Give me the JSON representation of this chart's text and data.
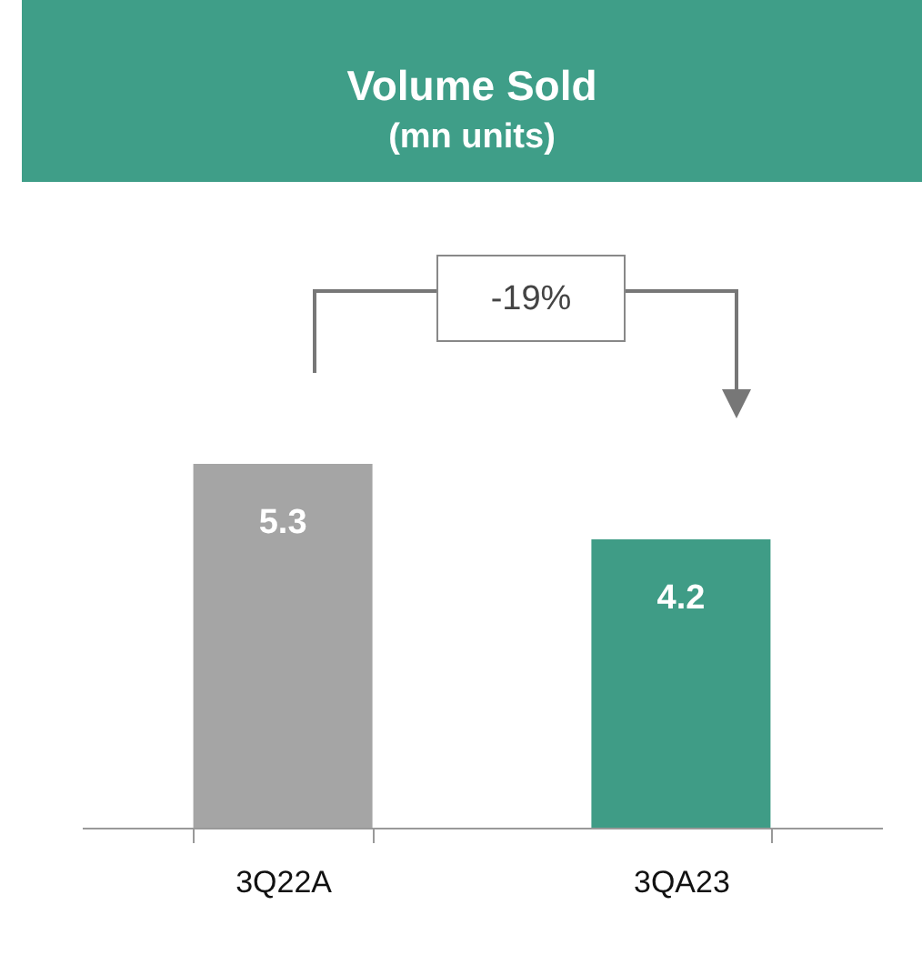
{
  "chart_data": {
    "type": "bar",
    "title": "Volume Sold",
    "subtitle": "(mn units)",
    "categories": [
      "3Q22A",
      "3QA23"
    ],
    "values": [
      5.3,
      4.2
    ],
    "colors": [
      "#a5a5a5",
      "#3f9c86"
    ],
    "data_labels": true,
    "tick_labels": "x",
    "annotations": [
      "-19%"
    ]
  }
}
